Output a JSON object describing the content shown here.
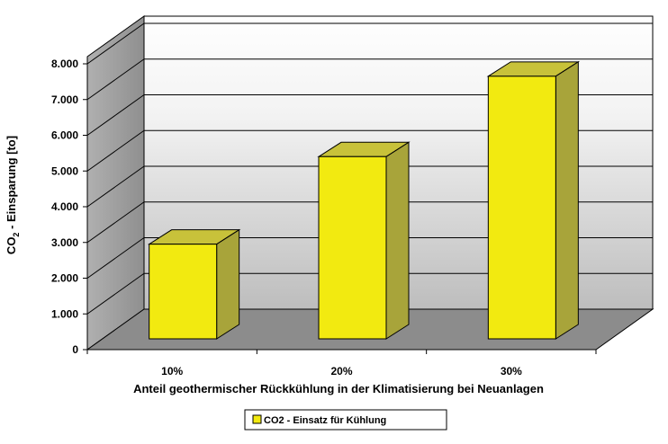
{
  "chart_data": {
    "type": "bar",
    "categories": [
      "10%",
      "20%",
      "30%"
    ],
    "series": [
      {
        "name": "CO2 - Einsatz für Kühlung",
        "values": [
          2650,
          5100,
          7350
        ]
      }
    ],
    "xlabel": "Anteil geothermischer Rückkühlung in der Klimatisierung bei Neuanlagen",
    "ylabel": {
      "main": "CO",
      "sub": "2",
      "rest": " - Einsparung [to]"
    },
    "yticks": [
      "0",
      "1.000",
      "2.000",
      "3.000",
      "4.000",
      "5.000",
      "6.000",
      "7.000",
      "8.000"
    ],
    "ylim": [
      0,
      8000
    ],
    "grid": true,
    "legend": "bottom-center",
    "colors": {
      "bar_front": "#F2EA10",
      "bar_top": "#C8C23A",
      "bar_side": "#A8A43A",
      "floor": "#8C8C8C",
      "left_wall": "#9A9A9A",
      "back_wall_top": "#FFFFFF",
      "back_wall_bottom": "#C0C0C0"
    }
  }
}
